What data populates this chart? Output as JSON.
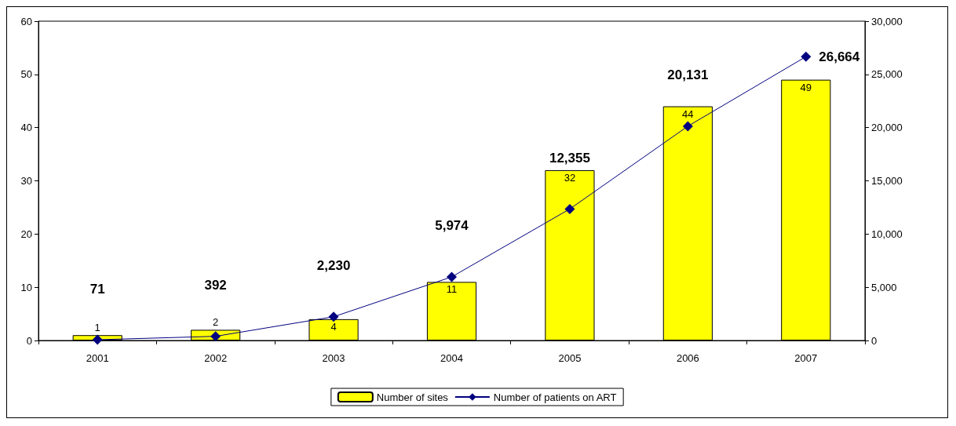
{
  "chart_data": {
    "type": "bar",
    "categories": [
      "2001",
      "2002",
      "2003",
      "2004",
      "2005",
      "2006",
      "2007"
    ],
    "series": [
      {
        "name": "Number of sites",
        "color": "#ffff00",
        "values": [
          1,
          2,
          4,
          11,
          32,
          44,
          49
        ]
      },
      {
        "name": "Number of patients on ART",
        "type": "line",
        "axis": "y2",
        "color": "#000080",
        "values": [
          71,
          392,
          2230,
          5974,
          12355,
          20131,
          26664
        ],
        "value_labels": [
          "71",
          "392",
          "2,230",
          "5,974",
          "12,355",
          "20,131",
          "26,664"
        ]
      }
    ],
    "ylim": [
      0,
      60
    ],
    "yticks": [
      0,
      10,
      20,
      30,
      40,
      50,
      60
    ],
    "y2lim": [
      0,
      30000
    ],
    "y2ticks": [
      0,
      {
        "value": 5000,
        "label": "5,000"
      },
      {
        "value": 10000,
        "label": "10,000"
      },
      {
        "value": 15000,
        "label": "15,000"
      },
      {
        "value": 20000,
        "label": "20,000"
      },
      {
        "value": 25000,
        "label": "25,000"
      },
      {
        "value": 30000,
        "label": "30,000"
      }
    ],
    "data_labels": true,
    "grid": false,
    "legend": "bottom",
    "marker": "diamond",
    "line_style": "solid"
  }
}
